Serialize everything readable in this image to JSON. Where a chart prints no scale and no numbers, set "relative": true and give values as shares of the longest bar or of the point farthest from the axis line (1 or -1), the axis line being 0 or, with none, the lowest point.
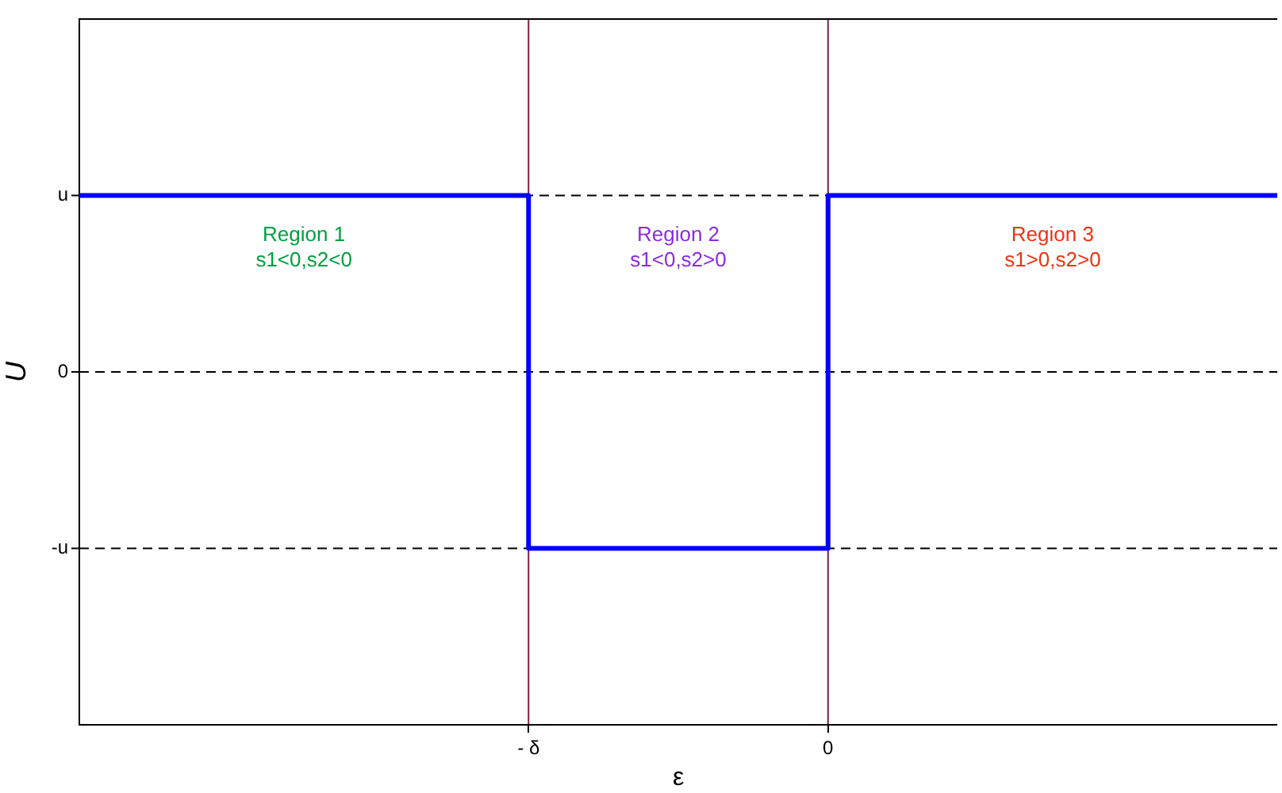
{
  "chart_data": {
    "type": "step",
    "xlabel": "ε",
    "ylabel": "U",
    "relative": true,
    "categories": [
      null,
      null,
      null,
      "- δ",
      null,
      "0",
      null,
      null,
      null
    ],
    "series": [
      {
        "color": "#0000ff",
        "values": [
          1,
          1,
          1,
          -1,
          -1,
          1,
          1,
          1,
          1
        ]
      }
    ],
    "ref_lines": [
      {
        "axis": "y",
        "value": 1,
        "label": "u",
        "color": "#000000",
        "line_style": "dashed"
      },
      {
        "axis": "y",
        "value": 0,
        "label": "0",
        "color": "#000000",
        "line_style": "dashed"
      },
      {
        "axis": "y",
        "value": -1,
        "label": "-u",
        "color": "#000000",
        "line_style": "dashed"
      },
      {
        "axis": "x",
        "value": "- δ",
        "color": "#7b2040",
        "line_style": "solid"
      },
      {
        "axis": "x",
        "value": "0",
        "color": "#7b2040",
        "line_style": "solid"
      }
    ],
    "annotations": [
      "Region 1\ns1<0,s2<0",
      "Region 2\ns1<0,s2>0",
      "Region 3\ns1>0,s2>0"
    ],
    "legend": false,
    "marker": "none",
    "line_style": "solid"
  }
}
